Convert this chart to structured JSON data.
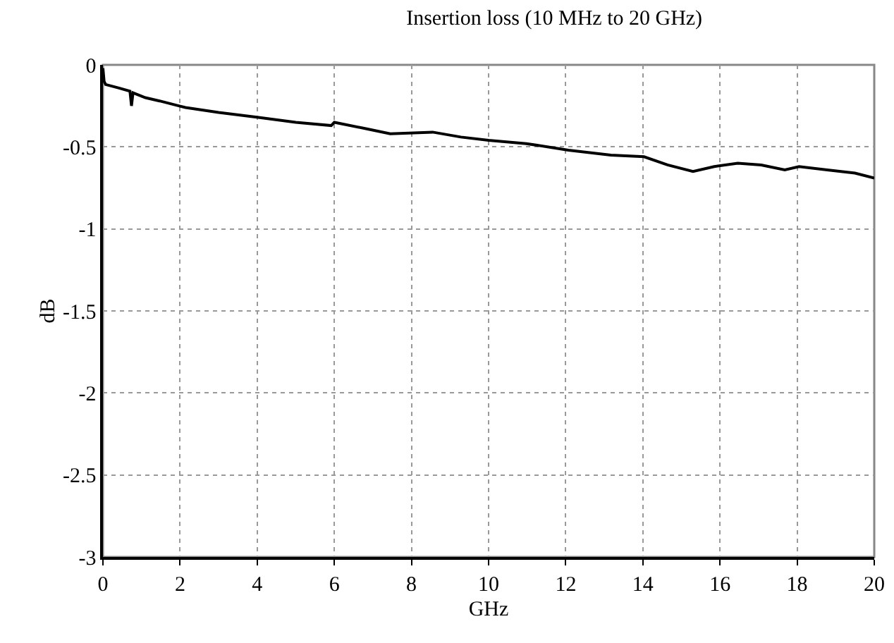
{
  "chart_data": {
    "type": "line",
    "title": "Insertion loss (10 MHz to 20 GHz)",
    "xlabel": "GHz",
    "ylabel": "dB",
    "x": [
      0,
      0.03,
      0.07,
      0.4,
      0.7,
      0.74,
      0.78,
      1.1,
      1.47,
      2.14,
      3.0,
      4.03,
      5.0,
      5.92,
      6.0,
      6.84,
      7.45,
      8.55,
      9.28,
      10.0,
      10.98,
      12.07,
      13.17,
      14.03,
      14.64,
      15.3,
      15.85,
      16.46,
      17.07,
      17.68,
      18.05,
      18.78,
      19.5,
      20.0
    ],
    "series": [
      {
        "color": "#000000",
        "values": [
          -0.02,
          -0.1,
          -0.12,
          -0.14,
          -0.16,
          -0.25,
          -0.17,
          -0.2,
          -0.22,
          -0.26,
          -0.29,
          -0.32,
          -0.35,
          -0.37,
          -0.35,
          -0.39,
          -0.42,
          -0.41,
          -0.44,
          -0.46,
          -0.48,
          -0.52,
          -0.55,
          -0.56,
          -0.61,
          -0.65,
          -0.62,
          -0.6,
          -0.61,
          -0.64,
          -0.62,
          -0.64,
          -0.66,
          -0.69
        ]
      }
    ],
    "xlim": [
      0,
      20
    ],
    "xticks": [
      0,
      2,
      4,
      6,
      8,
      10,
      12,
      14,
      16,
      18,
      20
    ],
    "ylim": [
      -3,
      0
    ],
    "yticks": [
      0,
      -0.5,
      -1,
      -1.5,
      -2,
      -2.5,
      -3
    ],
    "grid": true,
    "marker": "none",
    "line_style": "solid"
  }
}
